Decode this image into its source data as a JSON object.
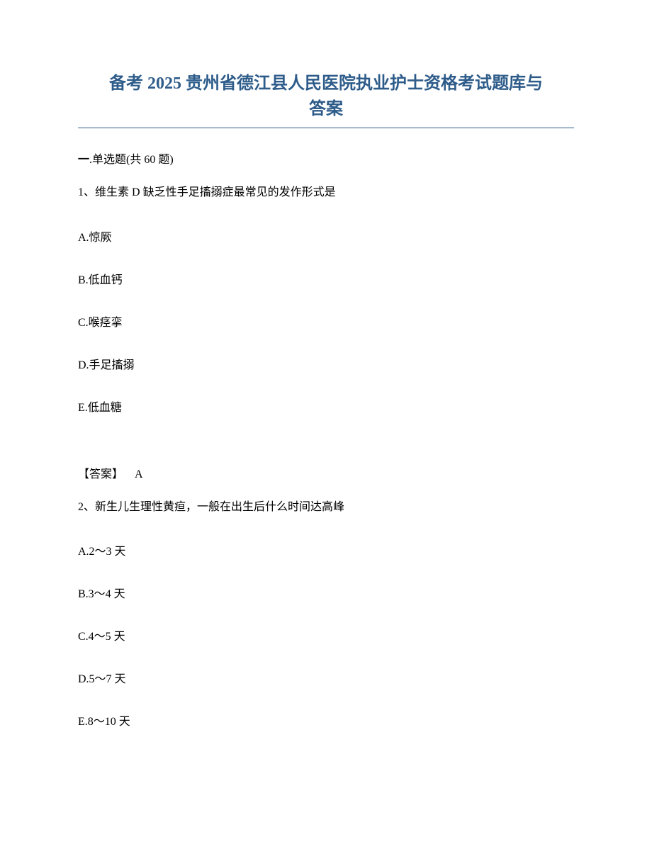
{
  "title_line1": "备考 2025 贵州省德江县人民医院执业护士资格考试题库与",
  "title_line2": "答案",
  "section_prefix": "一",
  "section_label": ".单选题(共 60 题)",
  "q1": {
    "number": "1、",
    "text": "维生素 D 缺乏性手足搐搦症最常见的发作形式是",
    "options": {
      "A": "A.惊厥",
      "B": "B.低血钙",
      "C": "C.喉痉挛",
      "D": "D.手足搐搦",
      "E": "E.低血糖"
    },
    "answer_label": "【答案】",
    "answer_value": "A"
  },
  "q2": {
    "number": "2、",
    "text": "新生儿生理性黄疸，一般在出生后什么时间达高峰",
    "options": {
      "A": "A.2～3 天",
      "B": "B.3～4 天",
      "C": "C.4～5 天",
      "D": "D.5～7 天",
      "E": "E.8～10 天"
    }
  }
}
